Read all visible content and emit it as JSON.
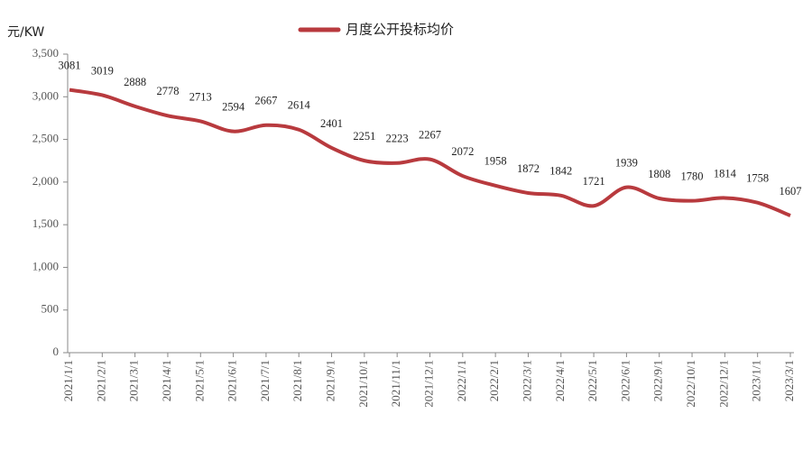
{
  "chart_data": {
    "type": "line",
    "y_label": "元/KW",
    "categories": [
      "2021/1/1",
      "2021/2/1",
      "2021/3/1",
      "2021/4/1",
      "2021/5/1",
      "2021/6/1",
      "2021/7/1",
      "2021/8/1",
      "2021/9/1",
      "2021/10/1",
      "2021/11/1",
      "2021/12/1",
      "2022/1/1",
      "2022/2/1",
      "2022/3/1",
      "2022/4/1",
      "2022/5/1",
      "2022/6/1",
      "2022/9/1",
      "2022/10/1",
      "2022/12/1",
      "2023/1/1",
      "2023/3/1"
    ],
    "series": [
      {
        "name": "月度公开投标均价",
        "color": "#b83a3e",
        "values": [
          3081,
          3019,
          2888,
          2778,
          2713,
          2594,
          2667,
          2614,
          2401,
          2251,
          2223,
          2267,
          2072,
          1958,
          1872,
          1842,
          1721,
          1939,
          1808,
          1780,
          1814,
          1758,
          1607
        ]
      }
    ],
    "ylim": [
      0,
      3500
    ],
    "yticks": [
      0,
      500,
      {
        "value": 1000,
        "label": "1,000"
      },
      {
        "value": 1500,
        "label": "1,500"
      },
      {
        "value": 2000,
        "label": "2,000"
      },
      {
        "value": 2500,
        "label": "2,500"
      },
      {
        "value": 3000,
        "label": "3,000"
      },
      {
        "value": 3500,
        "label": "3,500"
      }
    ],
    "smooth": true,
    "legend": "top"
  }
}
